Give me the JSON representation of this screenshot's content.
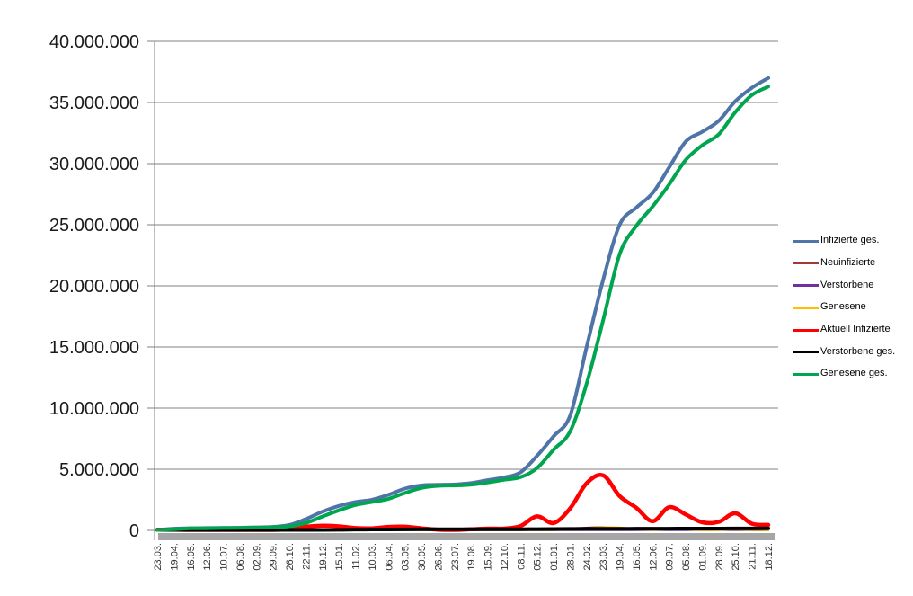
{
  "chart_data": {
    "type": "line",
    "title": "",
    "xlabel": "",
    "ylabel": "",
    "ylim": [
      0,
      40000000
    ],
    "grid": "horizontal",
    "legend_position": "right",
    "y_tick_labels": [
      "0",
      "5.000.000",
      "10.000.000",
      "15.000.000",
      "20.000.000",
      "25.000.000",
      "30.000.000",
      "35.000.000",
      "40.000.000"
    ],
    "categories": [
      "23.03.",
      "19.04.",
      "16.05.",
      "12.06.",
      "10.07.",
      "06.08.",
      "02.09.",
      "29.09.",
      "26.10.",
      "22.11.",
      "19.12.",
      "15.01.",
      "11.02.",
      "10.03.",
      "06.04.",
      "03.05.",
      "30.05.",
      "26.06.",
      "23.07.",
      "19.08.",
      "15.09.",
      "12.10.",
      "08.11.",
      "05.12.",
      "01.01.",
      "28.01.",
      "24.02.",
      "23.03.",
      "19.04.",
      "16.05.",
      "12.06.",
      "09.07.",
      "05.08.",
      "01.09.",
      "28.09.",
      "25.10.",
      "21.11.",
      "18.12."
    ],
    "series": [
      {
        "name": "Infizierte ges.",
        "color": "#4F74A8",
        "stroke_width": 4,
        "values": [
          30000,
          140000,
          180000,
          190000,
          200000,
          215000,
          250000,
          290000,
          440000,
          930000,
          1530000,
          2000000,
          2320000,
          2510000,
          2910000,
          3420000,
          3680000,
          3730000,
          3760000,
          3870000,
          4110000,
          4330000,
          4750000,
          6100000,
          7700000,
          9400000,
          15000000,
          20500000,
          25000000,
          26400000,
          27600000,
          29700000,
          31800000,
          32600000,
          33500000,
          35100000,
          36200000,
          37000000
        ]
      },
      {
        "name": "Neuinfizierte",
        "color": "#9E3B38",
        "stroke_width": 2.5,
        "values": [
          5000,
          2000,
          1000,
          300,
          400,
          1000,
          1000,
          2000,
          15000,
          20000,
          28000,
          18000,
          8000,
          12000,
          20000,
          15000,
          5000,
          1000,
          2000,
          8000,
          10000,
          10000,
          35000,
          60000,
          40000,
          140000,
          200000,
          250000,
          160000,
          60000,
          70000,
          100000,
          70000,
          30000,
          60000,
          90000,
          35000,
          30000
        ]
      },
      {
        "name": "Verstorbene",
        "color": "#7030A0",
        "stroke_width": 2.5,
        "values": [
          200,
          250,
          150,
          30,
          20,
          20,
          20,
          50,
          300,
          700,
          900,
          800,
          400,
          250,
          200,
          250,
          150,
          50,
          30,
          30,
          60,
          70,
          200,
          400,
          350,
          200,
          250,
          300,
          250,
          150,
          100,
          100,
          150,
          100,
          100,
          150,
          150,
          120
        ]
      },
      {
        "name": "Genesene",
        "color": "#FFC000",
        "stroke_width": 2.5,
        "values": [
          2000,
          3000,
          2000,
          1000,
          500,
          1000,
          1000,
          1000,
          7000,
          15000,
          22000,
          22000,
          12000,
          10000,
          15000,
          20000,
          10000,
          3000,
          1000,
          5000,
          8000,
          8000,
          20000,
          45000,
          45000,
          90000,
          160000,
          230000,
          220000,
          90000,
          60000,
          90000,
          90000,
          45000,
          50000,
          80000,
          60000,
          30000
        ]
      },
      {
        "name": "Aktuell Infizierte",
        "color": "#FF0000",
        "stroke_width": 4.5,
        "values": [
          50000,
          50000,
          20000,
          10000,
          10000,
          10000,
          20000,
          30000,
          100000,
          300000,
          380000,
          330000,
          190000,
          170000,
          290000,
          300000,
          170000,
          60000,
          40000,
          90000,
          150000,
          150000,
          360000,
          1150000,
          600000,
          1800000,
          3850000,
          4500000,
          2800000,
          1850000,
          750000,
          1900000,
          1300000,
          660000,
          700000,
          1400000,
          550000,
          450000
        ]
      },
      {
        "name": "Verstorbene ges.",
        "color": "#000000",
        "stroke_width": 4,
        "values": [
          400,
          4500,
          8000,
          8800,
          9000,
          9200,
          9300,
          9500,
          10000,
          14000,
          27000,
          46000,
          64000,
          72000,
          77000,
          84000,
          88000,
          90000,
          91000,
          92000,
          93000,
          94000,
          97000,
          103000,
          112000,
          118000,
          122000,
          127000,
          132000,
          137000,
          140000,
          142000,
          145000,
          147000,
          150000,
          153000,
          157000,
          161000
        ]
      },
      {
        "name": "Genesene ges.",
        "color": "#00A550",
        "stroke_width": 4,
        "values": [
          10000,
          90000,
          160000,
          170000,
          190000,
          200000,
          220000,
          260000,
          330000,
          610000,
          1130000,
          1640000,
          2070000,
          2320000,
          2580000,
          3060000,
          3470000,
          3640000,
          3670000,
          3740000,
          3920000,
          4140000,
          4350000,
          5100000,
          6600000,
          8100000,
          12000000,
          17200000,
          22600000,
          24900000,
          26500000,
          28300000,
          30300000,
          31500000,
          32400000,
          34200000,
          35600000,
          36300000
        ]
      }
    ]
  },
  "style": {
    "background": "#FFFFFF",
    "grid_color": "#808080",
    "axis_color": "#808080",
    "shadow_band_color": "#A6A6A6",
    "y_label_color": "#1A1A1A",
    "x_label_color": "#333333",
    "legend_text_color": "#000000"
  }
}
